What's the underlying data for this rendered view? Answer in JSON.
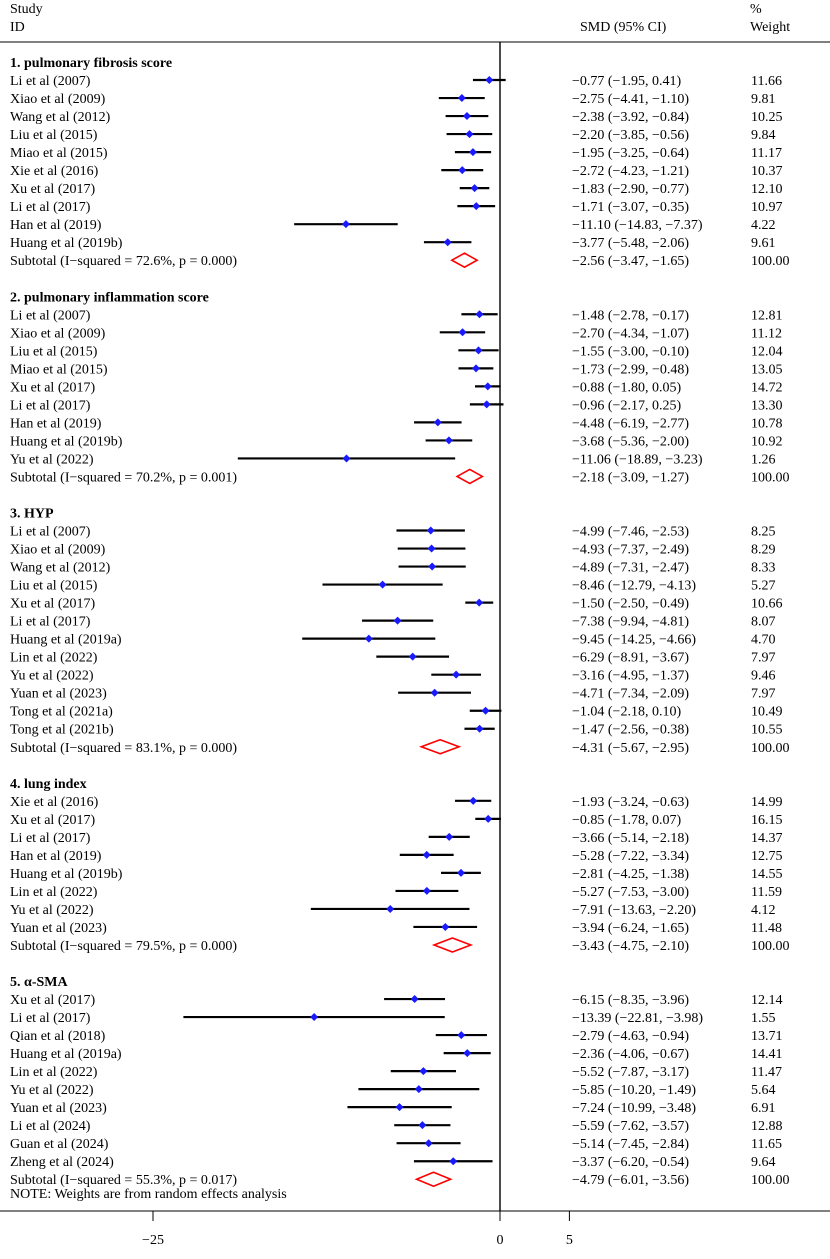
{
  "header": {
    "study_label_line1": "Study",
    "study_label_line2": "ID",
    "effect_label": "SMD (95% CI)",
    "weight_label_line1": "%",
    "weight_label_line2": "Weight"
  },
  "note": "NOTE: Weights are from random effects analysis",
  "colors": {
    "marker": "#1a1aff",
    "diamond": "#ff0000",
    "line": "#000000"
  },
  "chart_data": {
    "type": "forest",
    "measure": "SMD (95% CI)",
    "xaxis": {
      "ticks": [
        -25,
        0,
        5
      ],
      "tick_labels": [
        "−25",
        "0",
        "5"
      ],
      "null_line": 0,
      "xlim": [
        -30,
        12
      ]
    },
    "groups": [
      {
        "label": "1. pulmonary fibrosis score",
        "studies": [
          {
            "id": "Li et al (2007)",
            "smd": -0.77,
            "lo": -1.95,
            "hi": 0.41,
            "ci_text": "−0.77 (−1.95, 0.41)",
            "weight": "11.66"
          },
          {
            "id": "Xiao et al (2009)",
            "smd": -2.75,
            "lo": -4.41,
            "hi": -1.1,
            "ci_text": "−2.75 (−4.41, −1.10)",
            "weight": "9.81"
          },
          {
            "id": "Wang et al (2012)",
            "smd": -2.38,
            "lo": -3.92,
            "hi": -0.84,
            "ci_text": "−2.38 (−3.92, −0.84)",
            "weight": "10.25"
          },
          {
            "id": "Liu et al (2015)",
            "smd": -2.2,
            "lo": -3.85,
            "hi": -0.56,
            "ci_text": "−2.20 (−3.85, −0.56)",
            "weight": "9.84"
          },
          {
            "id": "Miao et al (2015)",
            "smd": -1.95,
            "lo": -3.25,
            "hi": -0.64,
            "ci_text": "−1.95 (−3.25, −0.64)",
            "weight": "11.17"
          },
          {
            "id": "Xie et al (2016)",
            "smd": -2.72,
            "lo": -4.23,
            "hi": -1.21,
            "ci_text": "−2.72 (−4.23, −1.21)",
            "weight": "10.37"
          },
          {
            "id": "Xu et al (2017)",
            "smd": -1.83,
            "lo": -2.9,
            "hi": -0.77,
            "ci_text": "−1.83 (−2.90, −0.77)",
            "weight": "12.10"
          },
          {
            "id": "Li et al (2017)",
            "smd": -1.71,
            "lo": -3.07,
            "hi": -0.35,
            "ci_text": "−1.71 (−3.07, −0.35)",
            "weight": "10.97"
          },
          {
            "id": "Han et al (2019)",
            "smd": -11.1,
            "lo": -14.83,
            "hi": -7.37,
            "ci_text": "−11.10 (−14.83, −7.37)",
            "weight": "4.22"
          },
          {
            "id": "Huang et al (2019b)",
            "smd": -3.77,
            "lo": -5.48,
            "hi": -2.06,
            "ci_text": "−3.77 (−5.48, −2.06)",
            "weight": "9.61"
          }
        ],
        "subtotal": {
          "label": "Subtotal  (I−squared = 72.6%, p = 0.000)",
          "smd": -2.56,
          "lo": -3.47,
          "hi": -1.65,
          "ci_text": "−2.56 (−3.47, −1.65)",
          "weight": "100.00"
        }
      },
      {
        "label": "2. pulmonary inflammation score",
        "studies": [
          {
            "id": "Li et al (2007)",
            "smd": -1.48,
            "lo": -2.78,
            "hi": -0.17,
            "ci_text": "−1.48 (−2.78, −0.17)",
            "weight": "12.81"
          },
          {
            "id": "Xiao et al (2009)",
            "smd": -2.7,
            "lo": -4.34,
            "hi": -1.07,
            "ci_text": "−2.70 (−4.34, −1.07)",
            "weight": "11.12"
          },
          {
            "id": "Liu et al (2015)",
            "smd": -1.55,
            "lo": -3.0,
            "hi": -0.1,
            "ci_text": "−1.55 (−3.00, −0.10)",
            "weight": "12.04"
          },
          {
            "id": "Miao et al (2015)",
            "smd": -1.73,
            "lo": -2.99,
            "hi": -0.48,
            "ci_text": "−1.73 (−2.99, −0.48)",
            "weight": "13.05"
          },
          {
            "id": "Xu et al (2017)",
            "smd": -0.88,
            "lo": -1.8,
            "hi": 0.05,
            "ci_text": "−0.88 (−1.80, 0.05)",
            "weight": "14.72"
          },
          {
            "id": "Li et al (2017)",
            "smd": -0.96,
            "lo": -2.17,
            "hi": 0.25,
            "ci_text": "−0.96 (−2.17, 0.25)",
            "weight": "13.30"
          },
          {
            "id": "Han et al (2019)",
            "smd": -4.48,
            "lo": -6.19,
            "hi": -2.77,
            "ci_text": "−4.48 (−6.19, −2.77)",
            "weight": "10.78"
          },
          {
            "id": "Huang et al (2019b)",
            "smd": -3.68,
            "lo": -5.36,
            "hi": -2.0,
            "ci_text": "−3.68 (−5.36, −2.00)",
            "weight": "10.92"
          },
          {
            "id": "Yu et al (2022)",
            "smd": -11.06,
            "lo": -18.89,
            "hi": -3.23,
            "ci_text": "−11.06 (−18.89, −3.23)",
            "weight": "1.26"
          }
        ],
        "subtotal": {
          "label": "Subtotal  (I−squared = 70.2%, p = 0.001)",
          "smd": -2.18,
          "lo": -3.09,
          "hi": -1.27,
          "ci_text": "−2.18 (−3.09, −1.27)",
          "weight": "100.00"
        }
      },
      {
        "label": "3. HYP",
        "studies": [
          {
            "id": "Li et al (2007)",
            "smd": -4.99,
            "lo": -7.46,
            "hi": -2.53,
            "ci_text": "−4.99 (−7.46, −2.53)",
            "weight": "8.25"
          },
          {
            "id": "Xiao et al (2009)",
            "smd": -4.93,
            "lo": -7.37,
            "hi": -2.49,
            "ci_text": "−4.93 (−7.37, −2.49)",
            "weight": "8.29"
          },
          {
            "id": "Wang et al (2012)",
            "smd": -4.89,
            "lo": -7.31,
            "hi": -2.47,
            "ci_text": "−4.89 (−7.31, −2.47)",
            "weight": "8.33"
          },
          {
            "id": "Liu et al (2015)",
            "smd": -8.46,
            "lo": -12.79,
            "hi": -4.13,
            "ci_text": "−8.46 (−12.79, −4.13)",
            "weight": "5.27"
          },
          {
            "id": "Xu et al (2017)",
            "smd": -1.5,
            "lo": -2.5,
            "hi": -0.49,
            "ci_text": "−1.50 (−2.50, −0.49)",
            "weight": "10.66"
          },
          {
            "id": "Li et al (2017)",
            "smd": -7.38,
            "lo": -9.94,
            "hi": -4.81,
            "ci_text": "−7.38 (−9.94, −4.81)",
            "weight": "8.07"
          },
          {
            "id": "Huang et al (2019a)",
            "smd": -9.45,
            "lo": -14.25,
            "hi": -4.66,
            "ci_text": "−9.45 (−14.25, −4.66)",
            "weight": "4.70"
          },
          {
            "id": "Lin et al (2022)",
            "smd": -6.29,
            "lo": -8.91,
            "hi": -3.67,
            "ci_text": "−6.29 (−8.91, −3.67)",
            "weight": "7.97"
          },
          {
            "id": "Yu et al (2022)",
            "smd": -3.16,
            "lo": -4.95,
            "hi": -1.37,
            "ci_text": "−3.16 (−4.95, −1.37)",
            "weight": "9.46"
          },
          {
            "id": "Yuan et al (2023)",
            "smd": -4.71,
            "lo": -7.34,
            "hi": -2.09,
            "ci_text": "−4.71 (−7.34, −2.09)",
            "weight": "7.97"
          },
          {
            "id": "Tong et al (2021a)",
            "smd": -1.04,
            "lo": -2.18,
            "hi": 0.1,
            "ci_text": "−1.04 (−2.18, 0.10)",
            "weight": "10.49"
          },
          {
            "id": "Tong et al (2021b)",
            "smd": -1.47,
            "lo": -2.56,
            "hi": -0.38,
            "ci_text": "−1.47 (−2.56, −0.38)",
            "weight": "10.55"
          }
        ],
        "subtotal": {
          "label": "Subtotal  (I−squared = 83.1%, p = 0.000)",
          "smd": -4.31,
          "lo": -5.67,
          "hi": -2.95,
          "ci_text": "−4.31 (−5.67, −2.95)",
          "weight": "100.00"
        }
      },
      {
        "label": "4. lung index",
        "studies": [
          {
            "id": "Xie et al (2016)",
            "smd": -1.93,
            "lo": -3.24,
            "hi": -0.63,
            "ci_text": "−1.93 (−3.24, −0.63)",
            "weight": "14.99"
          },
          {
            "id": "Xu et al (2017)",
            "smd": -0.85,
            "lo": -1.78,
            "hi": 0.07,
            "ci_text": "−0.85 (−1.78, 0.07)",
            "weight": "16.15"
          },
          {
            "id": "Li et al (2017)",
            "smd": -3.66,
            "lo": -5.14,
            "hi": -2.18,
            "ci_text": "−3.66 (−5.14, −2.18)",
            "weight": "14.37"
          },
          {
            "id": "Han et al (2019)",
            "smd": -5.28,
            "lo": -7.22,
            "hi": -3.34,
            "ci_text": "−5.28 (−7.22, −3.34)",
            "weight": "12.75"
          },
          {
            "id": "Huang et al (2019b)",
            "smd": -2.81,
            "lo": -4.25,
            "hi": -1.38,
            "ci_text": "−2.81 (−4.25, −1.38)",
            "weight": "14.55"
          },
          {
            "id": "Lin et al (2022)",
            "smd": -5.27,
            "lo": -7.53,
            "hi": -3.0,
            "ci_text": "−5.27 (−7.53, −3.00)",
            "weight": "11.59"
          },
          {
            "id": "Yu et al (2022)",
            "smd": -7.91,
            "lo": -13.63,
            "hi": -2.2,
            "ci_text": "−7.91 (−13.63, −2.20)",
            "weight": "4.12"
          },
          {
            "id": "Yuan et al (2023)",
            "smd": -3.94,
            "lo": -6.24,
            "hi": -1.65,
            "ci_text": "−3.94 (−6.24, −1.65)",
            "weight": "11.48"
          }
        ],
        "subtotal": {
          "label": "Subtotal  (I−squared = 79.5%, p = 0.000)",
          "smd": -3.43,
          "lo": -4.75,
          "hi": -2.1,
          "ci_text": "−3.43 (−4.75, −2.10)",
          "weight": "100.00"
        }
      },
      {
        "label": "5. α-SMA",
        "studies": [
          {
            "id": "Xu et al (2017)",
            "smd": -6.15,
            "lo": -8.35,
            "hi": -3.96,
            "ci_text": "−6.15 (−8.35, −3.96)",
            "weight": "12.14"
          },
          {
            "id": "Li et al (2017)",
            "smd": -13.39,
            "lo": -22.81,
            "hi": -3.98,
            "ci_text": "−13.39 (−22.81, −3.98)",
            "weight": "1.55"
          },
          {
            "id": "Qian et al (2018)",
            "smd": -2.79,
            "lo": -4.63,
            "hi": -0.94,
            "ci_text": "−2.79 (−4.63, −0.94)",
            "weight": "13.71"
          },
          {
            "id": "Huang et al (2019a)",
            "smd": -2.36,
            "lo": -4.06,
            "hi": -0.67,
            "ci_text": "−2.36 (−4.06, −0.67)",
            "weight": "14.41"
          },
          {
            "id": "Lin et al (2022)",
            "smd": -5.52,
            "lo": -7.87,
            "hi": -3.17,
            "ci_text": "−5.52 (−7.87, −3.17)",
            "weight": "11.47"
          },
          {
            "id": "Yu et al (2022)",
            "smd": -5.85,
            "lo": -10.2,
            "hi": -1.49,
            "ci_text": "−5.85 (−10.20, −1.49)",
            "weight": "5.64"
          },
          {
            "id": "Yuan et al (2023)",
            "smd": -7.24,
            "lo": -10.99,
            "hi": -3.48,
            "ci_text": "−7.24 (−10.99, −3.48)",
            "weight": "6.91"
          },
          {
            "id": "Li et al (2024)",
            "smd": -5.59,
            "lo": -7.62,
            "hi": -3.57,
            "ci_text": "−5.59 (−7.62, −3.57)",
            "weight": "12.88"
          },
          {
            "id": "Guan et al (2024)",
            "smd": -5.14,
            "lo": -7.45,
            "hi": -2.84,
            "ci_text": "−5.14 (−7.45, −2.84)",
            "weight": "11.65"
          },
          {
            "id": "Zheng et al (2024)",
            "smd": -3.37,
            "lo": -6.2,
            "hi": -0.54,
            "ci_text": "−3.37 (−6.20, −0.54)",
            "weight": "9.64"
          }
        ],
        "subtotal": {
          "label": "Subtotal  (I−squared = 55.3%, p = 0.017)",
          "smd": -4.79,
          "lo": -6.01,
          "hi": -3.56,
          "ci_text": "−4.79 (−6.01, −3.56)",
          "weight": "100.00"
        }
      }
    ]
  }
}
